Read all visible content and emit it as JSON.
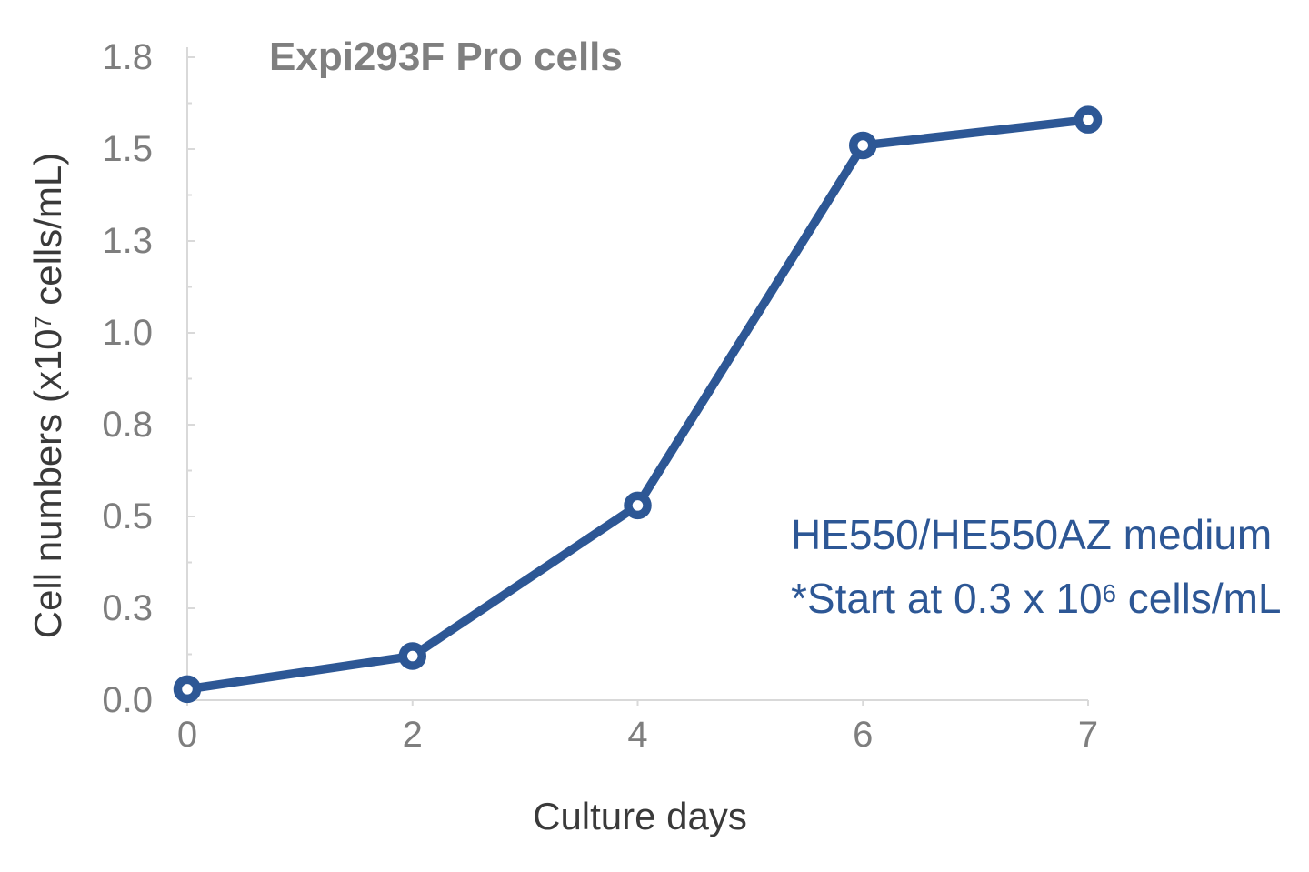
{
  "chart_data": {
    "type": "line",
    "title": "Expi293F Pro cells",
    "categories": [
      "0",
      "2",
      "4",
      "6",
      "7"
    ],
    "x_values": [
      0,
      2,
      4,
      6,
      7
    ],
    "series": [
      {
        "name": "Expi293F Pro cells",
        "values": [
          0.03,
          0.12,
          0.53,
          1.51,
          1.58
        ]
      }
    ],
    "xlabel": "Culture days",
    "ylabel": "Cell numbers (x10^7 cells/mL)",
    "ylim": [
      0,
      1.75
    ],
    "y_tick_step": 0.25,
    "y_minor_tick_step": 0.125,
    "y_tick_labels": [
      "0.0",
      "0.3",
      "0.5",
      "0.8",
      "1.0",
      "1.3",
      "1.5",
      "1.8"
    ],
    "x_axis_equal_category_spacing": true,
    "grid": false,
    "legend": false,
    "marker_style": "open-circle",
    "line_color": "#2d5795",
    "annotations": [
      "HE550/HE550AZ medium",
      "*Start at 0.3 x 10^6 cells/mL"
    ]
  },
  "title": {
    "text": "Expi293F Pro cells"
  },
  "y_axis": {
    "label_prefix": "Cell numbers (x10",
    "label_sup": "7",
    "label_suffix": " cells/mL)"
  },
  "x_axis": {
    "label": "Culture days"
  },
  "annotation": {
    "line1": "HE550/HE550AZ medium",
    "line2_prefix": "*Start at 0.3 x 10",
    "line2_sup": "6",
    "line2_suffix": " cells/mL"
  },
  "colors": {
    "line": "#2d5795",
    "annotation_text": "#2d5795",
    "title_text": "#7f7f7f",
    "tick_text": "#7e7e7e",
    "axis_label_text": "#3a3a3a",
    "axis_line": "#d9d9d9"
  }
}
